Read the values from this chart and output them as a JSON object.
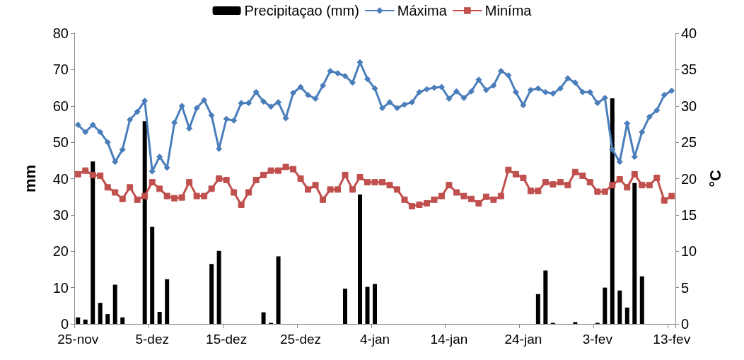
{
  "chart_data": {
    "type": "bar",
    "ylabel": "mm",
    "y2label": "°C",
    "categories": [
      "25-nov",
      null,
      null,
      null,
      null,
      null,
      null,
      null,
      null,
      null,
      "5-dez",
      null,
      null,
      null,
      null,
      null,
      null,
      null,
      null,
      null,
      "15-dez",
      null,
      null,
      null,
      null,
      null,
      null,
      null,
      null,
      null,
      "25-dez",
      null,
      null,
      null,
      null,
      null,
      null,
      null,
      null,
      null,
      "4-jan",
      null,
      null,
      null,
      null,
      null,
      null,
      null,
      null,
      null,
      "14-jan",
      null,
      null,
      null,
      null,
      null,
      null,
      null,
      null,
      null,
      "24-jan",
      null,
      null,
      null,
      null,
      null,
      null,
      null,
      null,
      null,
      "3-fev",
      null,
      null,
      null,
      null,
      null,
      null,
      null,
      null,
      null,
      "13-fev"
    ],
    "series": [
      {
        "name": "Precipitaçao (mm)",
        "color": "#000000",
        "values": [
          1.8,
          1.2,
          44.7,
          5.8,
          2.7,
          10.8,
          1.8,
          0,
          0,
          55.8,
          26.7,
          3.3,
          12.3,
          0,
          0,
          0,
          0,
          0,
          16.5,
          20.1,
          0,
          0,
          0,
          0,
          0,
          3.2,
          0.3,
          18.6,
          0,
          0,
          0,
          0,
          0,
          0,
          0,
          0,
          9.7,
          0,
          35.6,
          10.2,
          11.0,
          0,
          0,
          0,
          0,
          0,
          0,
          0,
          0,
          0,
          0,
          0,
          0,
          0,
          0,
          0,
          0,
          0,
          0,
          0,
          0,
          0,
          8.2,
          14.7,
          0.3,
          0,
          0,
          0.5,
          0,
          0,
          0.3,
          10.0,
          62.1,
          9.2,
          4.5,
          38.8,
          13.1,
          0,
          0,
          0,
          0
        ]
      },
      {
        "name": "Máxima",
        "type": "line",
        "axis": "y2",
        "marker": "diamond",
        "color": "#4a7ebb",
        "values": [
          27.4,
          26.4,
          27.4,
          26.4,
          25.0,
          22.3,
          24.0,
          28.1,
          29.2,
          30.7,
          21.0,
          23.0,
          21.5,
          27.7,
          30.0,
          26.9,
          29.7,
          30.8,
          28.7,
          24.1,
          28.2,
          28.0,
          30.4,
          30.4,
          31.9,
          30.6,
          29.9,
          30.5,
          28.3,
          31.8,
          32.6,
          31.5,
          31.0,
          32.8,
          34.8,
          34.5,
          34.1,
          33.2,
          36.0,
          33.7,
          32.4,
          29.7,
          30.5,
          29.7,
          30.2,
          30.5,
          31.9,
          32.3,
          32.5,
          32.6,
          31.0,
          32.0,
          31.1,
          32.0,
          33.6,
          32.2,
          32.8,
          34.8,
          34.2,
          31.9,
          30.1,
          32.2,
          32.4,
          31.9,
          31.7,
          32.4,
          33.8,
          33.2,
          31.9,
          31.9,
          30.4,
          31.1,
          24.0,
          22.3,
          27.6,
          23.0,
          26.4,
          28.5,
          29.4,
          31.5,
          32.1
        ]
      },
      {
        "name": "Miníma",
        "type": "line",
        "axis": "y2",
        "marker": "square",
        "color": "#c0504d",
        "values": [
          20.6,
          21.1,
          20.5,
          20.4,
          18.8,
          18.1,
          17.2,
          18.8,
          17.1,
          17.6,
          19.5,
          18.6,
          17.6,
          17.3,
          17.4,
          19.5,
          17.6,
          17.6,
          18.6,
          20.0,
          19.8,
          18.1,
          16.4,
          18.1,
          19.8,
          20.5,
          21.1,
          21.1,
          21.6,
          21.3,
          20.0,
          18.5,
          19.1,
          17.1,
          18.5,
          18.5,
          20.5,
          18.5,
          20.2,
          19.5,
          19.5,
          19.5,
          19.1,
          18.5,
          17.1,
          16.2,
          16.4,
          16.6,
          17.1,
          17.6,
          19.1,
          18.1,
          17.6,
          17.2,
          16.6,
          17.5,
          17.1,
          17.6,
          21.2,
          20.6,
          20.1,
          18.3,
          18.3,
          19.5,
          19.2,
          19.5,
          19.1,
          20.9,
          20.4,
          19.5,
          18.2,
          18.2,
          19.1,
          19.9,
          18.8,
          20.6,
          19.1,
          19.1,
          20.1,
          17.0,
          17.6
        ]
      }
    ],
    "ylim": [
      0,
      80
    ],
    "yticks": [
      0,
      10,
      20,
      30,
      40,
      50,
      60,
      70,
      80
    ],
    "y2lim": [
      0,
      40
    ],
    "y2ticks": [
      0,
      5,
      10,
      15,
      20,
      25,
      30,
      35,
      40
    ],
    "grid": false,
    "legend": "top"
  }
}
